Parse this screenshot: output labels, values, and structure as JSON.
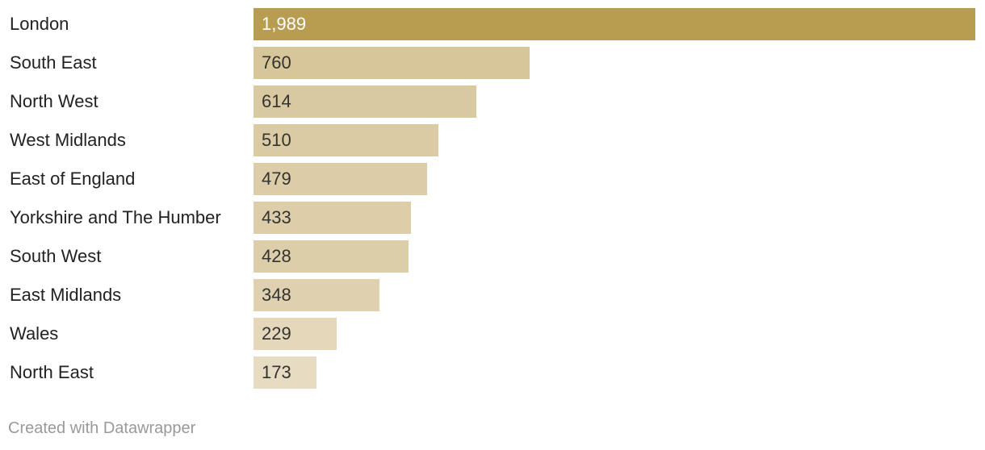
{
  "chart_data": {
    "type": "bar",
    "orientation": "horizontal",
    "categories": [
      "London",
      "South East",
      "North West",
      "West Midlands",
      "East of England",
      "Yorkshire and The Humber",
      "South West",
      "East Midlands",
      "Wales",
      "North East"
    ],
    "values": [
      1989,
      760,
      614,
      510,
      479,
      433,
      428,
      348,
      229,
      173
    ],
    "value_labels": [
      "1,989",
      "760",
      "614",
      "510",
      "479",
      "433",
      "428",
      "348",
      "229",
      "173"
    ],
    "xlim": [
      0,
      1989
    ],
    "grid": false,
    "colors": {
      "high": "#b89c50",
      "low": "#ede4d1",
      "label_on_dark": "#ffffff",
      "label_on_light": "#333333"
    }
  },
  "footer": {
    "credit": "Created with Datawrapper"
  }
}
